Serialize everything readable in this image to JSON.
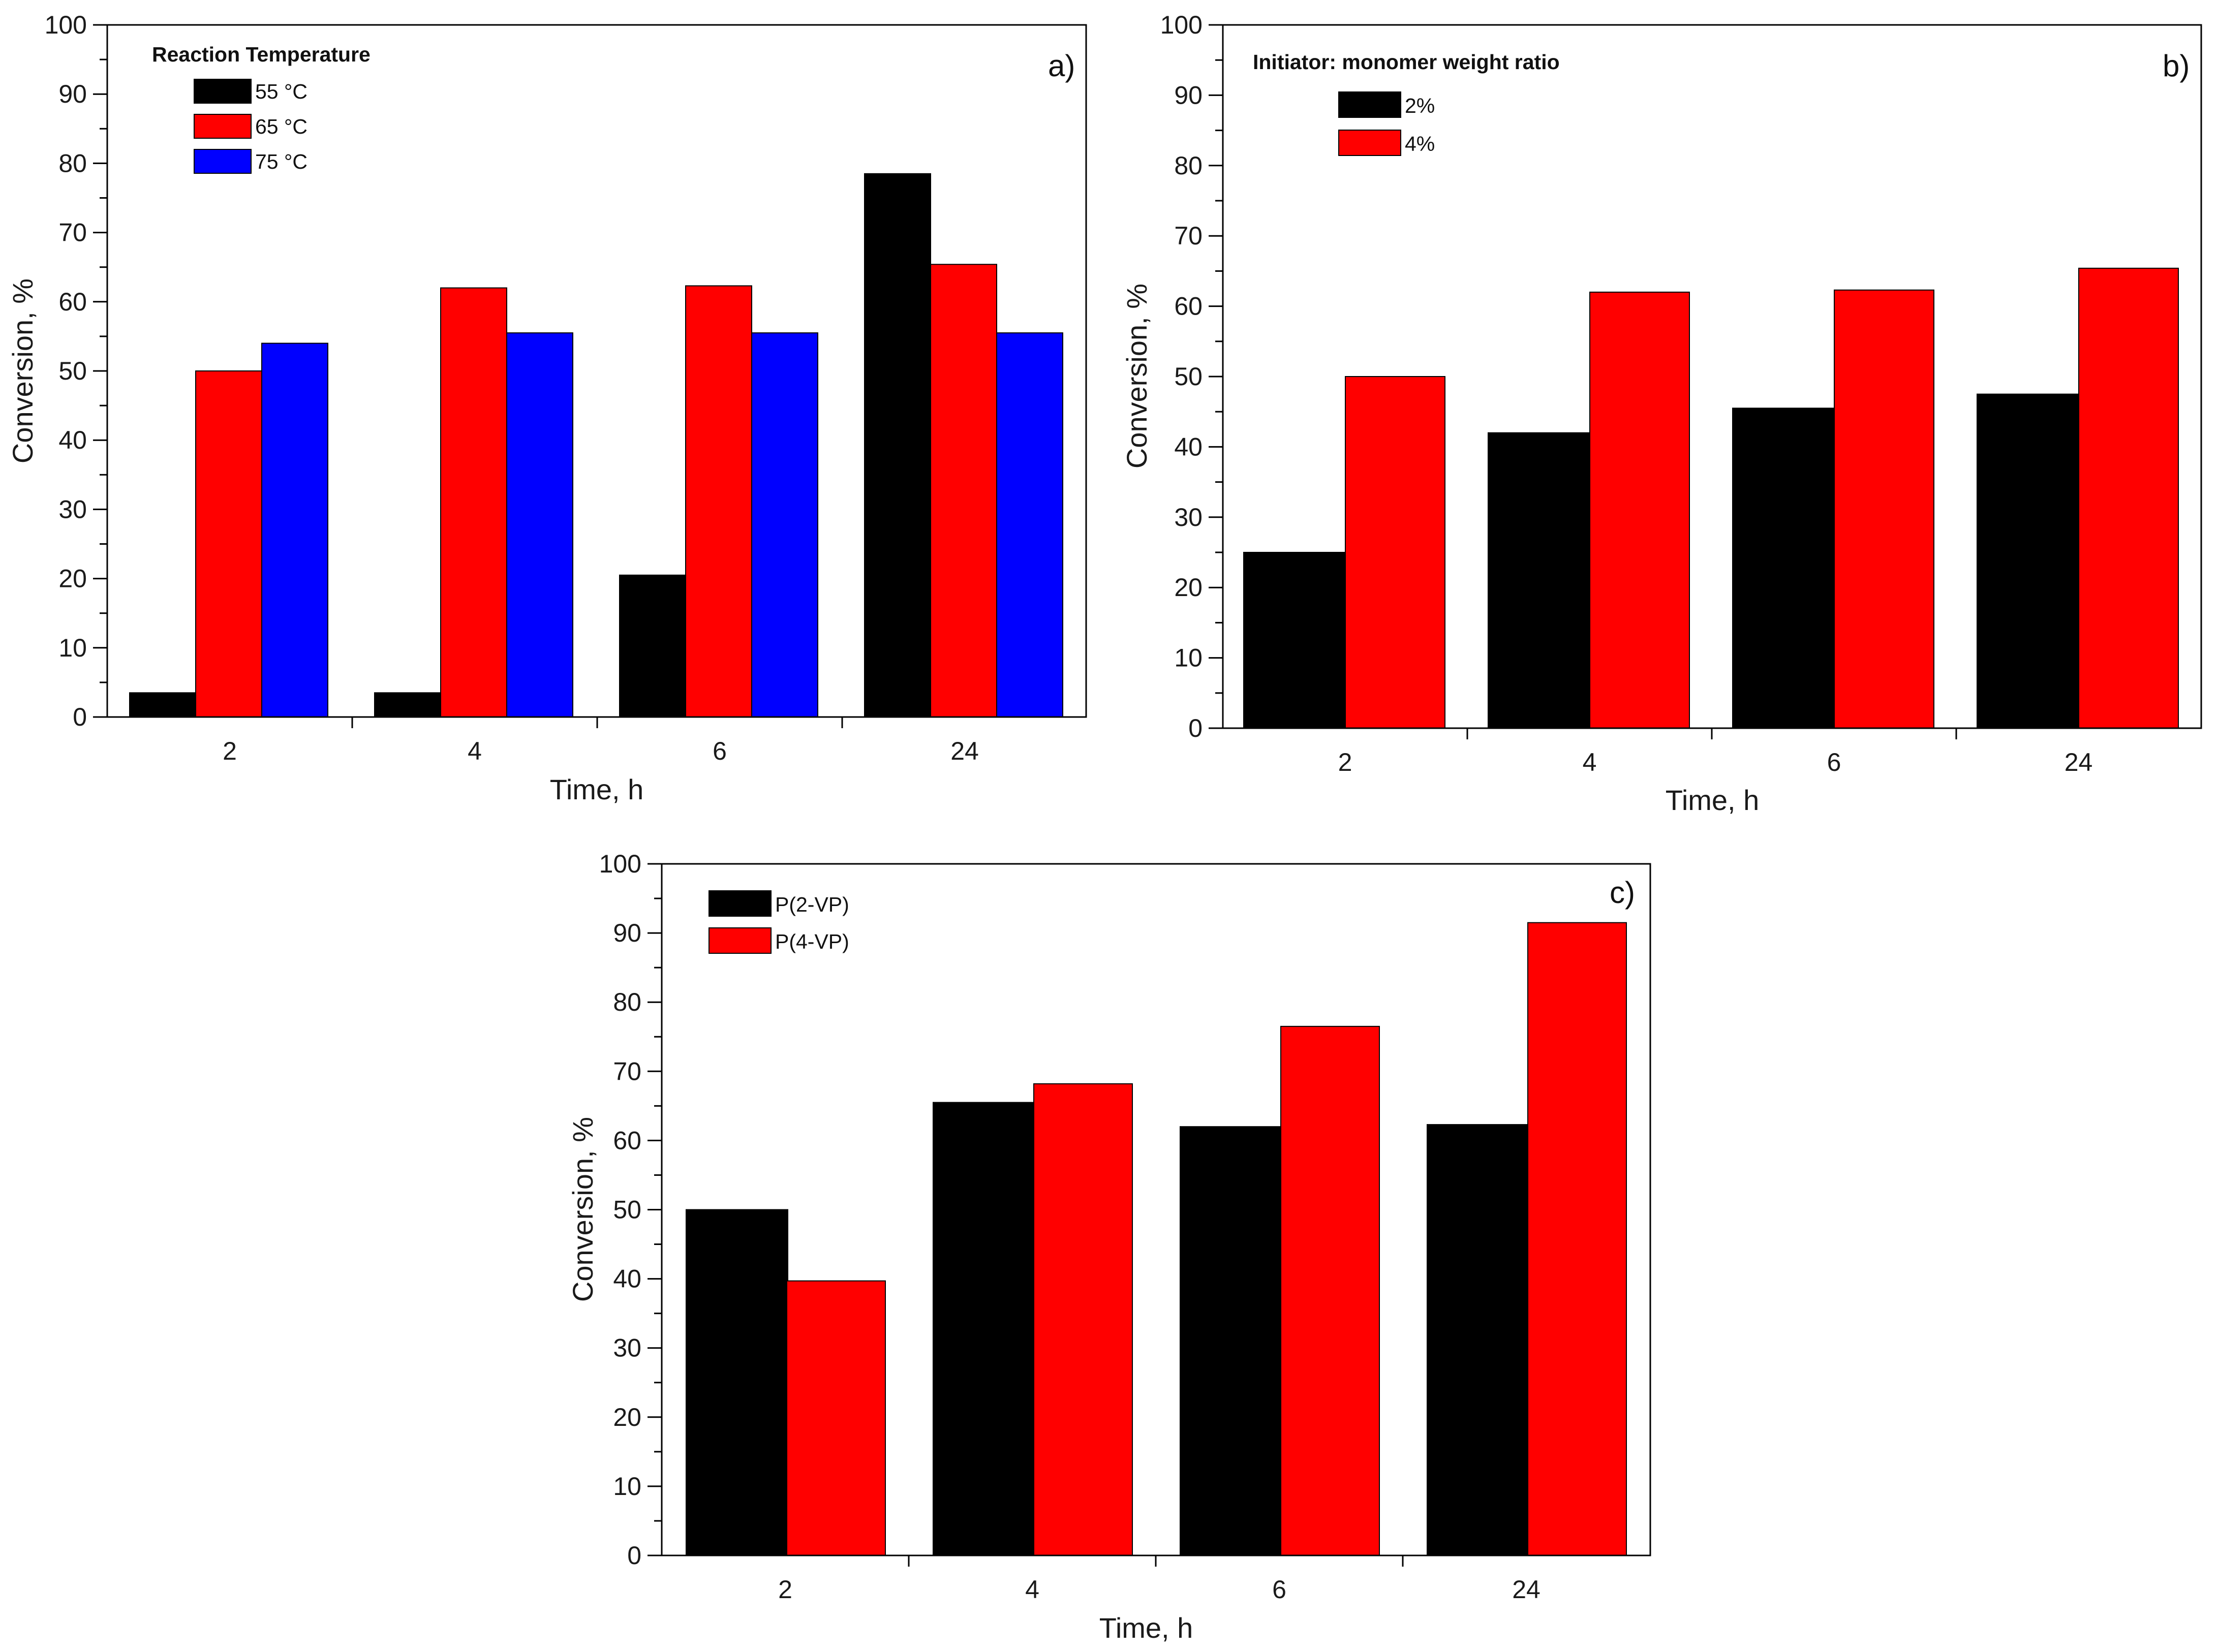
{
  "chart_data": [
    {
      "type": "bar",
      "panel_label": "a)",
      "categories": [
        "2",
        "4",
        "6",
        "24"
      ],
      "series": [
        {
          "name": "55 °C",
          "color": "#000000",
          "values": [
            3.5,
            3.5,
            20.5,
            78.5
          ]
        },
        {
          "name": "65 °C",
          "color": "#ff0000",
          "values": [
            50,
            62,
            62.3,
            65.4
          ]
        },
        {
          "name": "75 °C",
          "color": "#0000ff",
          "values": [
            54,
            55.5,
            55.5,
            55.5
          ]
        }
      ],
      "legend_title": "Reaction Temperature",
      "legend_position": "top-left",
      "xlabel": "Time, h",
      "ylabel": "Conversion, %",
      "ylim": [
        0,
        100
      ],
      "yticks": [
        0,
        10,
        20,
        30,
        40,
        50,
        60,
        70,
        80,
        90,
        100
      ],
      "grid": false
    },
    {
      "type": "bar",
      "panel_label": "b)",
      "categories": [
        "2",
        "4",
        "6",
        "24"
      ],
      "series": [
        {
          "name": "2%",
          "color": "#000000",
          "values": [
            25,
            42,
            45.5,
            47.5
          ]
        },
        {
          "name": "4%",
          "color": "#ff0000",
          "values": [
            50,
            62,
            62.3,
            65.4
          ]
        }
      ],
      "legend_title": "Initiator: monomer weight ratio",
      "legend_position": "top-left",
      "xlabel": "Time, h",
      "ylabel": "Conversion, %",
      "ylim": [
        0,
        100
      ],
      "yticks": [
        0,
        10,
        20,
        30,
        40,
        50,
        60,
        70,
        80,
        90,
        100
      ],
      "grid": false
    },
    {
      "type": "bar",
      "panel_label": "c)",
      "categories": [
        "2",
        "4",
        "6",
        "24"
      ],
      "series": [
        {
          "name": "P(2-VP)",
          "color": "#000000",
          "values": [
            50,
            65.5,
            62,
            62.3
          ]
        },
        {
          "name": "P(4-VP)",
          "color": "#ff0000",
          "values": [
            39.7,
            68.2,
            76.5,
            91.5
          ]
        }
      ],
      "legend_title": "",
      "legend_position": "top-left",
      "xlabel": "Time, h",
      "ylabel": "Conversion, %",
      "ylim": [
        0,
        100
      ],
      "yticks": [
        0,
        10,
        20,
        30,
        40,
        50,
        60,
        70,
        80,
        90,
        100
      ],
      "grid": false
    }
  ]
}
